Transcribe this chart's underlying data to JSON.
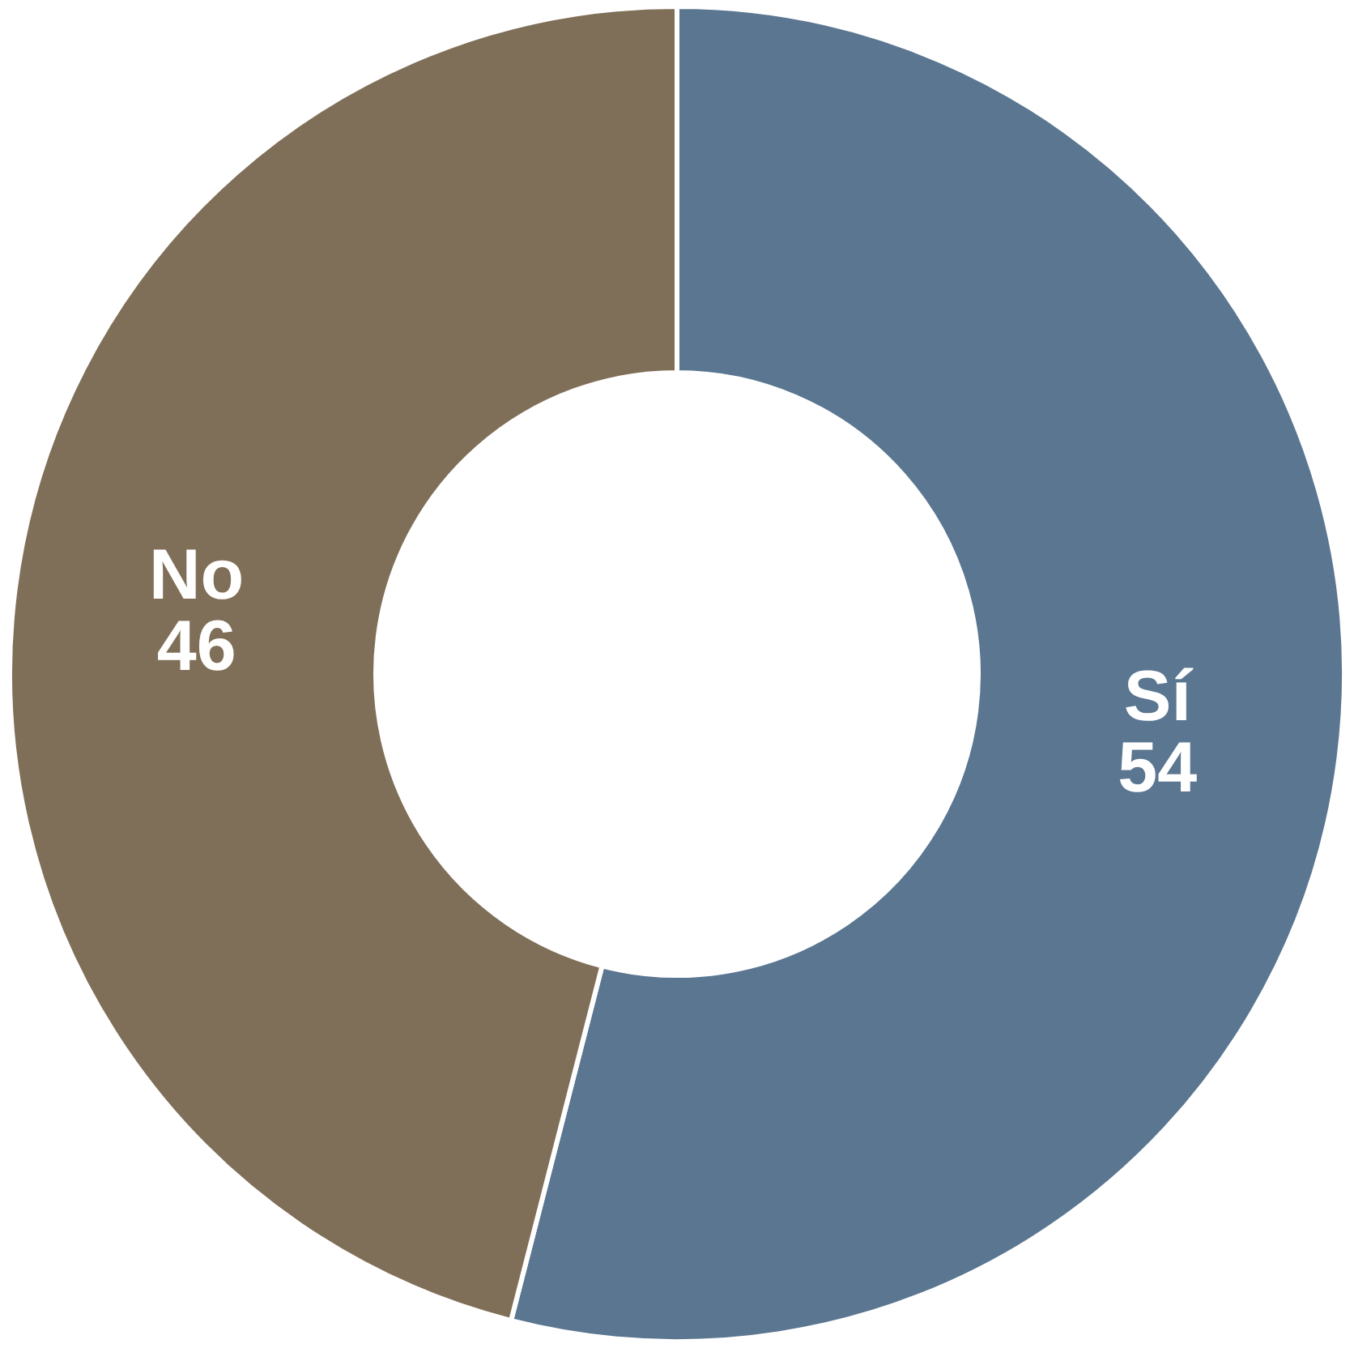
{
  "chart_data": {
    "type": "donut",
    "categories": [
      "Sí",
      "No"
    ],
    "values": [
      54,
      46
    ],
    "colors": [
      "#5b7690",
      "#806f58"
    ],
    "data_labels": true,
    "legend": false
  }
}
